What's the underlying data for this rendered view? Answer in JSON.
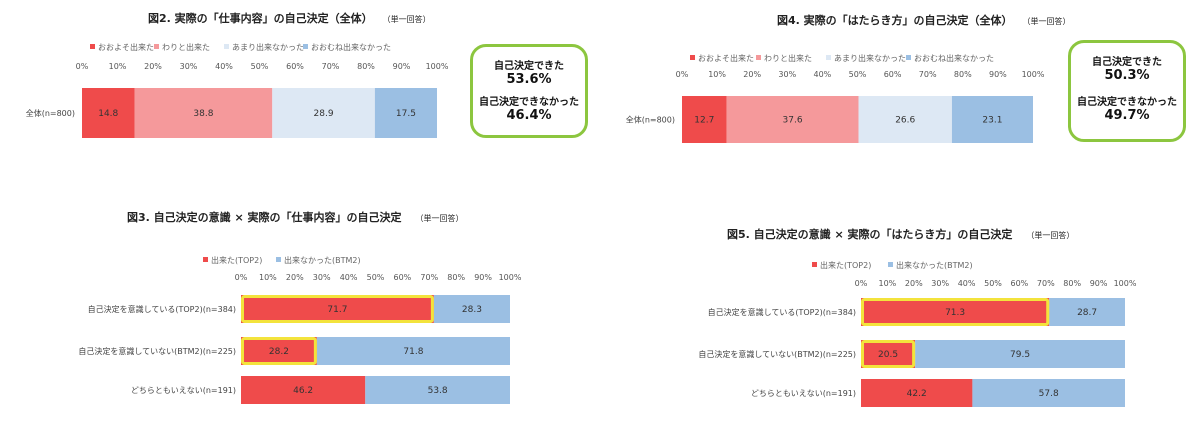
{
  "charts": [
    {
      "title": "図2. 実際の「仕事内容」の自己決定（全体）",
      "subtitle": "（単一回答）",
      "callout": {
        "a_label": "自己決定できた",
        "a_value": "53.6%",
        "b_label": "自己決定できなかった",
        "b_value": "46.4%"
      }
    },
    {
      "title": "図4. 実際の「はたらき方」の自己決定（全体）",
      "subtitle": "（単一回答）",
      "callout": {
        "a_label": "自己決定できた",
        "a_value": "50.3%",
        "b_label": "自己決定できなかった",
        "b_value": "49.7%"
      }
    },
    {
      "title": "図3. 自己決定の意識 × 実際の「仕事内容」の自己決定",
      "subtitle": "（単一回答）"
    },
    {
      "title": "図5. 自己決定の意識 × 実際の「はたらき方」の自己決定",
      "subtitle": "（単一回答）"
    }
  ],
  "colors": {
    "red": "#ef4b4b",
    "pink": "#f5999b",
    "lightblue": "#dde8f4",
    "blue": "#9bbfe3",
    "highlight": "#f3e33c",
    "callout_border": "#8cc63f"
  },
  "chart_data": [
    {
      "type": "bar",
      "orientation": "horizontal-stacked",
      "categories": [
        "全体(n=800)"
      ],
      "series": [
        {
          "name": "おおよそ出来た",
          "values": [
            14.8
          ]
        },
        {
          "name": "わりと出来た",
          "values": [
            38.8
          ]
        },
        {
          "name": "あまり出来なかった",
          "values": [
            28.9
          ]
        },
        {
          "name": "おおむね出来なかった",
          "values": [
            17.5
          ]
        }
      ],
      "xticks": [
        "0%",
        "10%",
        "20%",
        "30%",
        "40%",
        "50%",
        "60%",
        "70%",
        "80%",
        "90%",
        "100%"
      ],
      "xlim": [
        0,
        100
      ],
      "legend": "top-left",
      "grid": false
    },
    {
      "type": "bar",
      "orientation": "horizontal-stacked",
      "categories": [
        "全体(n=800)"
      ],
      "series": [
        {
          "name": "おおよそ出来た",
          "values": [
            12.7
          ]
        },
        {
          "name": "わりと出来た",
          "values": [
            37.6
          ]
        },
        {
          "name": "あまり出来なかった",
          "values": [
            26.6
          ]
        },
        {
          "name": "おおむね出来なかった",
          "values": [
            23.1
          ]
        }
      ],
      "xticks": [
        "0%",
        "10%",
        "20%",
        "30%",
        "40%",
        "50%",
        "60%",
        "70%",
        "80%",
        "90%",
        "100%"
      ],
      "xlim": [
        0,
        100
      ],
      "legend": "top-left",
      "grid": false
    },
    {
      "type": "bar",
      "orientation": "horizontal-stacked",
      "categories": [
        "自己決定を意識している(TOP2)(n=384)",
        "自己決定を意識していない(BTM2)(n=225)",
        "どちらともいえない(n=191)"
      ],
      "series": [
        {
          "name": "出来た(TOP2)",
          "values": [
            71.7,
            28.2,
            46.2
          ]
        },
        {
          "name": "出来なかった(BTM2)",
          "values": [
            28.3,
            71.8,
            53.8
          ]
        }
      ],
      "highlighted": [
        0,
        1
      ],
      "xticks": [
        "0%",
        "10%",
        "20%",
        "30%",
        "40%",
        "50%",
        "60%",
        "70%",
        "80%",
        "90%",
        "100%"
      ],
      "xlim": [
        0,
        100
      ],
      "legend": "top-left",
      "grid": false
    },
    {
      "type": "bar",
      "orientation": "horizontal-stacked",
      "categories": [
        "自己決定を意識している(TOP2)(n=384)",
        "自己決定を意識していない(BTM2)(n=225)",
        "どちらともいえない(n=191)"
      ],
      "series": [
        {
          "name": "出来た(TOP2)",
          "values": [
            71.3,
            20.5,
            42.2
          ]
        },
        {
          "name": "出来なかった(BTM2)",
          "values": [
            28.7,
            79.5,
            57.8
          ]
        }
      ],
      "highlighted": [
        0,
        1
      ],
      "xticks": [
        "0%",
        "10%",
        "20%",
        "30%",
        "40%",
        "50%",
        "60%",
        "70%",
        "80%",
        "90%",
        "100%"
      ],
      "xlim": [
        0,
        100
      ],
      "legend": "top-left",
      "grid": false
    }
  ]
}
